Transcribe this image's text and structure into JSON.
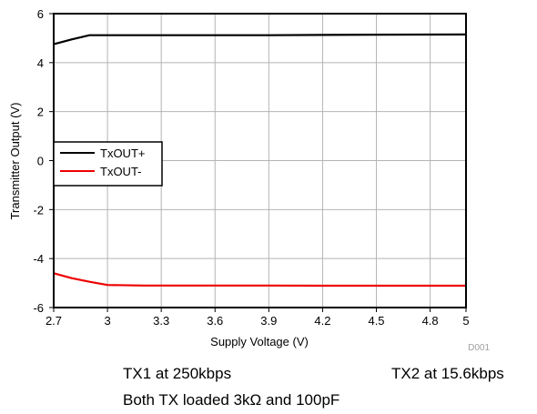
{
  "chart_data": {
    "type": "line",
    "xlabel": "Supply Voltage (V)",
    "ylabel": "Transmitter Output (V)",
    "xlim": [
      2.7,
      5
    ],
    "ylim": [
      -6,
      6
    ],
    "x_ticks": [
      2.7,
      3,
      3.3,
      3.6,
      3.9,
      4.2,
      4.5,
      4.8,
      5
    ],
    "x_tick_labels": [
      "2.7",
      "3",
      "3.3",
      "3.6",
      "3.9",
      "4.2",
      "4.5",
      "4.8",
      "5"
    ],
    "y_ticks": [
      6,
      4,
      2,
      0,
      -2,
      -4,
      -6
    ],
    "y_tick_labels": [
      "6",
      "4",
      "2",
      "0",
      "-2",
      "-4",
      "-6"
    ],
    "grid": true,
    "legend_position": "left-middle",
    "series": [
      {
        "name": "TxOUT+",
        "color": "#000000",
        "x": [
          2.7,
          2.8,
          2.9,
          3.0,
          3.2,
          3.5,
          3.9,
          4.2,
          4.5,
          5.0
        ],
        "y": [
          4.75,
          4.95,
          5.12,
          5.12,
          5.12,
          5.12,
          5.12,
          5.13,
          5.14,
          5.15
        ]
      },
      {
        "name": "TxOUT-",
        "color": "#ee0000",
        "x": [
          2.7,
          2.8,
          2.9,
          3.0,
          3.2,
          3.5,
          3.9,
          4.2,
          4.5,
          5.0
        ],
        "y": [
          -4.6,
          -4.8,
          -4.95,
          -5.08,
          -5.1,
          -5.1,
          -5.1,
          -5.11,
          -5.11,
          -5.11
        ]
      }
    ],
    "annotation": "D001"
  },
  "captions": {
    "tx1": "TX1 at 250kbps",
    "tx2": "TX2 at 15.6kbps",
    "load": "Both TX loaded 3kΩ and 100pF"
  }
}
